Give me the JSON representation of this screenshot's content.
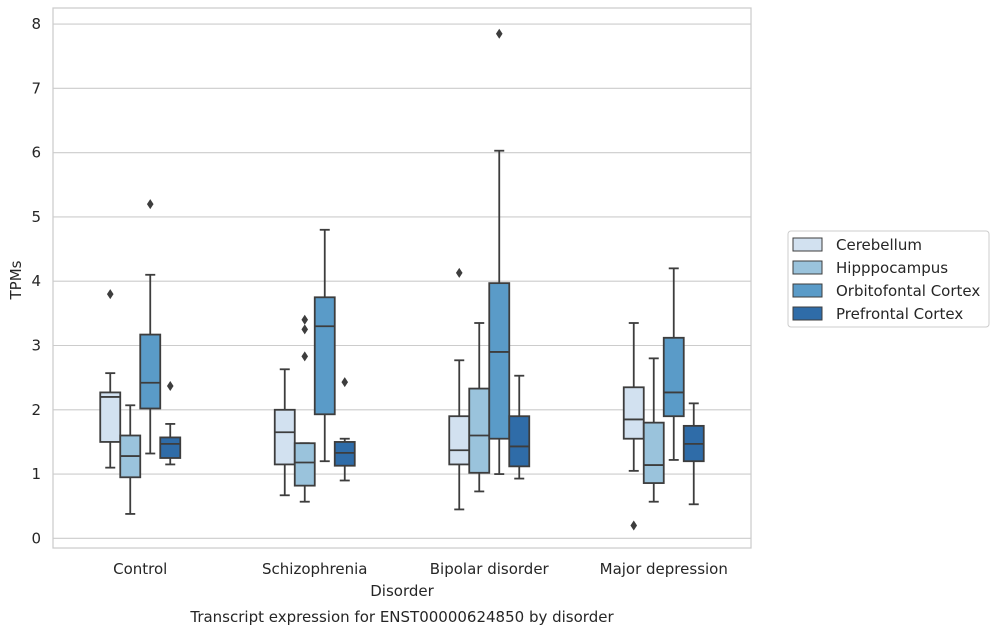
{
  "chart_data": {
    "type": "box",
    "title": "Transcript expression for ENST00000624850 by disorder",
    "xlabel": "Disorder",
    "ylabel": "TPMs",
    "ylim": [
      -0.15,
      8.25
    ],
    "yticks": [
      0,
      1,
      2,
      3,
      4,
      5,
      6,
      7,
      8
    ],
    "categories": [
      "Control",
      "Schizophrenia",
      "Bipolar disorder",
      "Major depression"
    ],
    "grid": "horizontal",
    "legend_position": "right",
    "series": [
      {
        "name": "Cerebellum",
        "color": "#d2e1f0",
        "boxes": [
          {
            "whislo": 1.1,
            "q1": 1.5,
            "med": 2.2,
            "q3": 2.27,
            "whishi": 2.57,
            "fliers": [
              3.8
            ]
          },
          {
            "whislo": 0.67,
            "q1": 1.15,
            "med": 1.65,
            "q3": 2.0,
            "whishi": 2.63,
            "fliers": []
          },
          {
            "whislo": 0.45,
            "q1": 1.15,
            "med": 1.37,
            "q3": 1.9,
            "whishi": 2.77,
            "fliers": [
              4.13
            ]
          },
          {
            "whislo": 1.05,
            "q1": 1.55,
            "med": 1.85,
            "q3": 2.35,
            "whishi": 3.35,
            "fliers": [
              0.2
            ]
          }
        ]
      },
      {
        "name": "Hipppocampus",
        "color": "#9ac3dc",
        "boxes": [
          {
            "whislo": 0.38,
            "q1": 0.95,
            "med": 1.28,
            "q3": 1.6,
            "whishi": 2.07,
            "fliers": []
          },
          {
            "whislo": 0.57,
            "q1": 0.82,
            "med": 1.18,
            "q3": 1.48,
            "whishi": 1.48,
            "fliers": [
              2.83,
              3.25,
              3.4
            ]
          },
          {
            "whislo": 0.73,
            "q1": 1.02,
            "med": 1.6,
            "q3": 2.33,
            "whishi": 3.35,
            "fliers": []
          },
          {
            "whislo": 0.57,
            "q1": 0.86,
            "med": 1.14,
            "q3": 1.8,
            "whishi": 2.8,
            "fliers": []
          }
        ]
      },
      {
        "name": "Orbitofontal Cortex",
        "color": "#5a9bc8",
        "boxes": [
          {
            "whislo": 1.32,
            "q1": 2.02,
            "med": 2.42,
            "q3": 3.17,
            "whishi": 4.1,
            "fliers": [
              5.2
            ]
          },
          {
            "whislo": 1.2,
            "q1": 1.93,
            "med": 3.3,
            "q3": 3.75,
            "whishi": 4.8,
            "fliers": []
          },
          {
            "whislo": 1.0,
            "q1": 1.55,
            "med": 2.9,
            "q3": 3.97,
            "whishi": 6.03,
            "fliers": [
              7.85
            ]
          },
          {
            "whislo": 1.22,
            "q1": 1.9,
            "med": 2.27,
            "q3": 3.12,
            "whishi": 4.2,
            "fliers": []
          }
        ]
      },
      {
        "name": "Prefrontal Cortex",
        "color": "#2f6ca8",
        "boxes": [
          {
            "whislo": 1.15,
            "q1": 1.25,
            "med": 1.47,
            "q3": 1.57,
            "whishi": 1.78,
            "fliers": [
              2.37
            ]
          },
          {
            "whislo": 0.9,
            "q1": 1.13,
            "med": 1.33,
            "q3": 1.5,
            "whishi": 1.55,
            "fliers": [
              2.43
            ]
          },
          {
            "whislo": 0.93,
            "q1": 1.12,
            "med": 1.43,
            "q3": 1.9,
            "whishi": 2.53,
            "fliers": []
          },
          {
            "whislo": 0.53,
            "q1": 1.2,
            "med": 1.47,
            "q3": 1.75,
            "whishi": 2.1,
            "fliers": []
          }
        ]
      }
    ]
  }
}
